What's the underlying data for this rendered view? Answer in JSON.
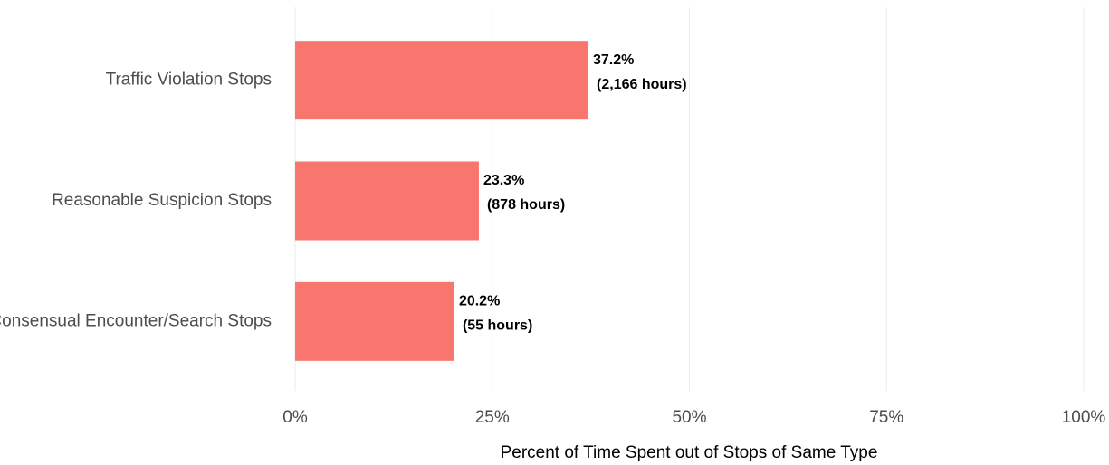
{
  "chart_data": {
    "type": "barh",
    "categories": [
      "Traffic Violation Stops",
      "Reasonable Suspicion Stops",
      "Consensual Encounter/Search Stops"
    ],
    "values": [
      37.2,
      23.3,
      20.2
    ],
    "value_labels": [
      [
        "37.2%",
        "(2,166 hours)"
      ],
      [
        "23.3%",
        "(878 hours)"
      ],
      [
        "20.2%",
        "(55 hours)"
      ]
    ],
    "color": "#f8766d",
    "xlabel": "Percent of Time Spent out of Stops of Same Type",
    "xlim": [
      0,
      100
    ],
    "xticks": [
      {
        "value": 0,
        "label": "0%"
      },
      {
        "value": 25,
        "label": "25%"
      },
      {
        "value": 50,
        "label": "50%"
      },
      {
        "value": 75,
        "label": "75%"
      },
      {
        "value": 100,
        "label": "100%"
      }
    ],
    "grid": true
  }
}
